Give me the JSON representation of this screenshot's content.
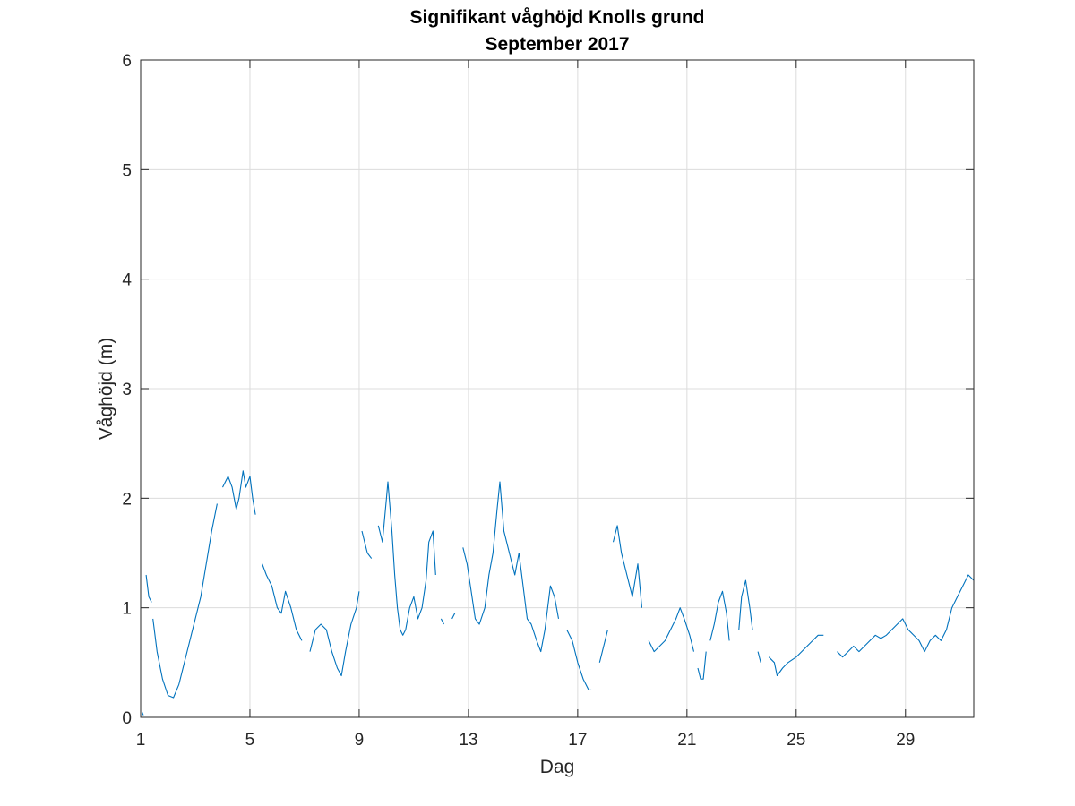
{
  "colors": {
    "series": "#0072bd",
    "grid": "#dcdcdc",
    "axis": "#262626",
    "background": "#ffffff"
  },
  "chart_data": {
    "type": "line",
    "title": "Signifikant våghöjd Knolls grund",
    "subtitle": "September 2017",
    "xlabel": "Dag",
    "ylabel": "Våghöjd (m)",
    "xlim": [
      1,
      31.5
    ],
    "ylim": [
      0,
      6
    ],
    "xticks": [
      1,
      5,
      9,
      13,
      17,
      21,
      25,
      29
    ],
    "xtick_labels": [
      "1",
      "5",
      "9",
      "13",
      "17",
      "21",
      "25",
      "29"
    ],
    "yticks": [
      0,
      1,
      2,
      3,
      4,
      5,
      6
    ],
    "ytick_labels": [
      "0",
      "1",
      "2",
      "3",
      "4",
      "5",
      "6"
    ],
    "grid": true,
    "series": [
      {
        "segments": [
          [
            [
              1.05,
              0.05
            ],
            [
              1.1,
              0.02
            ]
          ],
          [
            [
              1.2,
              1.3
            ],
            [
              1.3,
              1.1
            ],
            [
              1.4,
              1.05
            ]
          ],
          [
            [
              1.45,
              0.9
            ],
            [
              1.6,
              0.6
            ],
            [
              1.8,
              0.35
            ],
            [
              2.0,
              0.2
            ],
            [
              2.2,
              0.18
            ],
            [
              2.4,
              0.3
            ],
            [
              2.6,
              0.5
            ],
            [
              2.8,
              0.7
            ],
            [
              3.0,
              0.9
            ],
            [
              3.2,
              1.1
            ],
            [
              3.4,
              1.4
            ],
            [
              3.6,
              1.7
            ],
            [
              3.8,
              1.95
            ]
          ],
          [
            [
              4.0,
              2.1
            ],
            [
              4.2,
              2.2
            ],
            [
              4.35,
              2.1
            ],
            [
              4.5,
              1.9
            ],
            [
              4.6,
              2.0
            ],
            [
              4.75,
              2.25
            ],
            [
              4.85,
              2.1
            ],
            [
              5.0,
              2.2
            ],
            [
              5.1,
              2.0
            ],
            [
              5.2,
              1.85
            ]
          ],
          [
            [
              5.45,
              1.4
            ],
            [
              5.6,
              1.3
            ],
            [
              5.8,
              1.2
            ],
            [
              6.0,
              1.0
            ],
            [
              6.15,
              0.95
            ],
            [
              6.3,
              1.15
            ],
            [
              6.5,
              1.0
            ],
            [
              6.7,
              0.8
            ],
            [
              6.9,
              0.7
            ]
          ],
          [
            [
              7.2,
              0.6
            ],
            [
              7.4,
              0.8
            ],
            [
              7.6,
              0.85
            ],
            [
              7.8,
              0.8
            ],
            [
              8.0,
              0.6
            ],
            [
              8.2,
              0.45
            ],
            [
              8.35,
              0.38
            ],
            [
              8.5,
              0.6
            ],
            [
              8.7,
              0.85
            ],
            [
              8.9,
              1.0
            ],
            [
              9.0,
              1.15
            ]
          ],
          [
            [
              9.1,
              1.7
            ],
            [
              9.2,
              1.6
            ],
            [
              9.3,
              1.5
            ],
            [
              9.45,
              1.45
            ]
          ],
          [
            [
              9.7,
              1.75
            ],
            [
              9.85,
              1.6
            ],
            [
              10.0,
              2.0
            ],
            [
              10.05,
              2.15
            ],
            [
              10.2,
              1.7
            ],
            [
              10.3,
              1.3
            ],
            [
              10.4,
              1.0
            ],
            [
              10.5,
              0.8
            ],
            [
              10.6,
              0.75
            ],
            [
              10.7,
              0.8
            ],
            [
              10.85,
              1.0
            ],
            [
              11.0,
              1.1
            ],
            [
              11.15,
              0.9
            ],
            [
              11.3,
              1.0
            ],
            [
              11.45,
              1.25
            ],
            [
              11.55,
              1.6
            ],
            [
              11.7,
              1.7
            ],
            [
              11.8,
              1.3
            ]
          ],
          [
            [
              12.0,
              0.9
            ],
            [
              12.1,
              0.85
            ]
          ],
          [
            [
              12.4,
              0.9
            ],
            [
              12.5,
              0.95
            ]
          ],
          [
            [
              12.8,
              1.55
            ],
            [
              12.95,
              1.4
            ],
            [
              13.1,
              1.15
            ],
            [
              13.25,
              0.9
            ],
            [
              13.4,
              0.85
            ],
            [
              13.6,
              1.0
            ],
            [
              13.75,
              1.3
            ],
            [
              13.9,
              1.5
            ],
            [
              14.05,
              1.9
            ],
            [
              14.15,
              2.15
            ],
            [
              14.3,
              1.7
            ],
            [
              14.5,
              1.5
            ],
            [
              14.7,
              1.3
            ],
            [
              14.85,
              1.5
            ],
            [
              15.0,
              1.2
            ],
            [
              15.15,
              0.9
            ],
            [
              15.3,
              0.85
            ],
            [
              15.5,
              0.7
            ],
            [
              15.65,
              0.6
            ],
            [
              15.8,
              0.8
            ],
            [
              16.0,
              1.2
            ],
            [
              16.15,
              1.1
            ],
            [
              16.3,
              0.9
            ]
          ],
          [
            [
              16.6,
              0.8
            ],
            [
              16.8,
              0.7
            ],
            [
              17.0,
              0.5
            ],
            [
              17.2,
              0.35
            ],
            [
              17.4,
              0.25
            ],
            [
              17.5,
              0.25
            ]
          ],
          [
            [
              17.8,
              0.5
            ],
            [
              18.0,
              0.7
            ],
            [
              18.1,
              0.8
            ]
          ],
          [
            [
              18.3,
              1.6
            ],
            [
              18.45,
              1.75
            ],
            [
              18.6,
              1.5
            ],
            [
              18.8,
              1.3
            ],
            [
              19.0,
              1.1
            ],
            [
              19.2,
              1.4
            ],
            [
              19.35,
              1.0
            ]
          ],
          [
            [
              19.6,
              0.7
            ],
            [
              19.8,
              0.6
            ],
            [
              20.0,
              0.65
            ],
            [
              20.2,
              0.7
            ],
            [
              20.4,
              0.8
            ],
            [
              20.6,
              0.9
            ],
            [
              20.75,
              1.0
            ],
            [
              20.9,
              0.9
            ],
            [
              21.1,
              0.75
            ],
            [
              21.25,
              0.6
            ]
          ],
          [
            [
              21.4,
              0.45
            ],
            [
              21.5,
              0.35
            ],
            [
              21.6,
              0.35
            ],
            [
              21.7,
              0.6
            ]
          ],
          [
            [
              21.85,
              0.7
            ],
            [
              22.0,
              0.85
            ],
            [
              22.15,
              1.05
            ],
            [
              22.3,
              1.15
            ],
            [
              22.45,
              0.95
            ],
            [
              22.55,
              0.7
            ]
          ],
          [
            [
              22.9,
              0.8
            ],
            [
              23.0,
              1.1
            ],
            [
              23.15,
              1.25
            ],
            [
              23.3,
              1.0
            ],
            [
              23.4,
              0.8
            ]
          ],
          [
            [
              23.6,
              0.6
            ],
            [
              23.7,
              0.5
            ]
          ],
          [
            [
              24.0,
              0.55
            ],
            [
              24.2,
              0.5
            ],
            [
              24.3,
              0.38
            ],
            [
              24.5,
              0.45
            ],
            [
              24.7,
              0.5
            ],
            [
              25.0,
              0.55
            ],
            [
              25.2,
              0.6
            ],
            [
              25.4,
              0.65
            ],
            [
              25.6,
              0.7
            ],
            [
              25.8,
              0.75
            ],
            [
              26.0,
              0.75
            ]
          ],
          [
            [
              26.5,
              0.6
            ],
            [
              26.7,
              0.55
            ],
            [
              26.9,
              0.6
            ],
            [
              27.1,
              0.65
            ],
            [
              27.3,
              0.6
            ],
            [
              27.5,
              0.65
            ],
            [
              27.7,
              0.7
            ],
            [
              27.9,
              0.75
            ],
            [
              28.1,
              0.72
            ],
            [
              28.3,
              0.75
            ],
            [
              28.5,
              0.8
            ],
            [
              28.7,
              0.85
            ],
            [
              28.9,
              0.9
            ],
            [
              29.1,
              0.8
            ],
            [
              29.3,
              0.75
            ],
            [
              29.5,
              0.7
            ],
            [
              29.7,
              0.6
            ],
            [
              29.9,
              0.7
            ],
            [
              30.1,
              0.75
            ],
            [
              30.3,
              0.7
            ],
            [
              30.5,
              0.8
            ],
            [
              30.7,
              1.0
            ],
            [
              30.9,
              1.1
            ],
            [
              31.1,
              1.2
            ],
            [
              31.3,
              1.3
            ],
            [
              31.5,
              1.25
            ]
          ]
        ]
      }
    ]
  }
}
